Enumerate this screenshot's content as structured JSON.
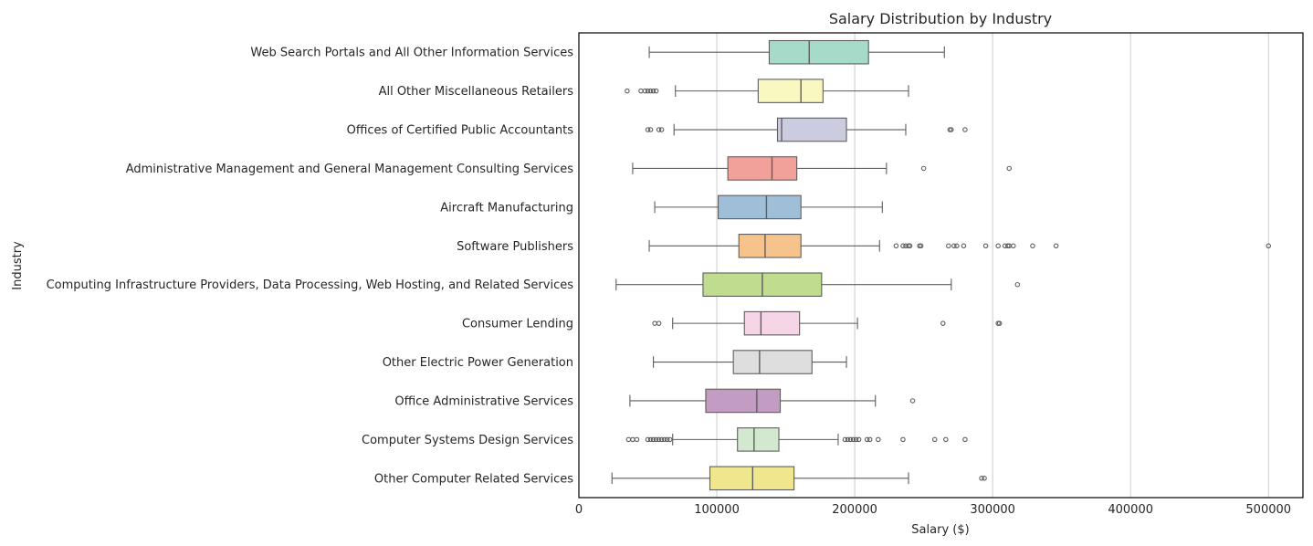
{
  "chart_data": {
    "type": "box",
    "orientation": "horizontal",
    "title": "Salary Distribution by Industry",
    "xlabel": "Salary ($)",
    "ylabel": "Industry",
    "xlim": [
      0,
      525000
    ],
    "xticks": [
      0,
      100000,
      200000,
      300000,
      400000,
      500000
    ],
    "xtick_labels": [
      "0",
      "100000",
      "200000",
      "300000",
      "400000",
      "500000"
    ],
    "grid": "vertical",
    "categories": [
      {
        "name": "Web Search Portals and All Other Information Services",
        "color": "#a6dbc9",
        "whisker_low": 51000,
        "q1": 138000,
        "median": 167000,
        "q3": 210000,
        "whisker_high": 265000,
        "outliers": []
      },
      {
        "name": "All Other Miscellaneous Retailers",
        "color": "#f8f8c0",
        "whisker_low": 70000,
        "q1": 130000,
        "median": 161000,
        "q3": 177000,
        "whisker_high": 239000,
        "outliers": [
          35000,
          45000,
          48000,
          50000,
          52000,
          54000,
          56000
        ]
      },
      {
        "name": "Offices of Certified Public Accountants",
        "color": "#cccce0",
        "whisker_low": 69000,
        "q1": 144000,
        "median": 147000,
        "q3": 194000,
        "whisker_high": 237000,
        "outliers": [
          50000,
          52000,
          58000,
          60000,
          269000,
          270000,
          280000
        ]
      },
      {
        "name": "Administrative Management and General Management Consulting Services",
        "color": "#f2a19a",
        "whisker_low": 39000,
        "q1": 108000,
        "median": 140000,
        "q3": 158000,
        "whisker_high": 223000,
        "outliers": [
          250000,
          312000
        ]
      },
      {
        "name": "Aircraft Manufacturing",
        "color": "#9fbfd8",
        "whisker_low": 55000,
        "q1": 101000,
        "median": 136000,
        "q3": 161000,
        "whisker_high": 220000,
        "outliers": []
      },
      {
        "name": "Software Publishers",
        "color": "#f6c38c",
        "whisker_low": 51000,
        "q1": 116000,
        "median": 135000,
        "q3": 161000,
        "whisker_high": 218000,
        "outliers": [
          230000,
          235000,
          237000,
          239000,
          240000,
          247000,
          248000,
          268000,
          272000,
          274000,
          279000,
          295000,
          304000,
          309000,
          311000,
          312000,
          315000,
          329000,
          346000,
          500000
        ]
      },
      {
        "name": "Computing Infrastructure Providers, Data Processing, Web Hosting, and Related Services",
        "color": "#c0dc8e",
        "whisker_low": 27000,
        "q1": 90000,
        "median": 133000,
        "q3": 176000,
        "whisker_high": 270000,
        "outliers": [
          318000
        ]
      },
      {
        "name": "Consumer Lending",
        "color": "#f6d5e7",
        "whisker_low": 68000,
        "q1": 120000,
        "median": 132000,
        "q3": 160000,
        "whisker_high": 202000,
        "outliers": [
          55000,
          58000,
          264000,
          304000,
          305000
        ]
      },
      {
        "name": "Other Electric Power Generation",
        "color": "#dedede",
        "whisker_low": 54000,
        "q1": 112000,
        "median": 131000,
        "q3": 169000,
        "whisker_high": 194000,
        "outliers": []
      },
      {
        "name": "Office Administrative Services",
        "color": "#c39cc3",
        "whisker_low": 37000,
        "q1": 92000,
        "median": 129000,
        "q3": 146000,
        "whisker_high": 215000,
        "outliers": [
          242000
        ]
      },
      {
        "name": "Computer Systems Design Services",
        "color": "#d3e9cf",
        "whisker_low": 68000,
        "q1": 115000,
        "median": 127000,
        "q3": 145000,
        "whisker_high": 188000,
        "outliers": [
          36000,
          39000,
          42000,
          50000,
          52000,
          54000,
          56000,
          58000,
          60000,
          62000,
          64000,
          66000,
          193000,
          195000,
          197000,
          199000,
          201000,
          203000,
          209000,
          211000,
          217000,
          235000,
          258000,
          266000,
          280000
        ]
      },
      {
        "name": "Other Computer Related Services",
        "color": "#f0e68e",
        "whisker_low": 24000,
        "q1": 95000,
        "median": 126000,
        "q3": 156000,
        "whisker_high": 239000,
        "outliers": [
          292000,
          294000
        ]
      }
    ]
  }
}
